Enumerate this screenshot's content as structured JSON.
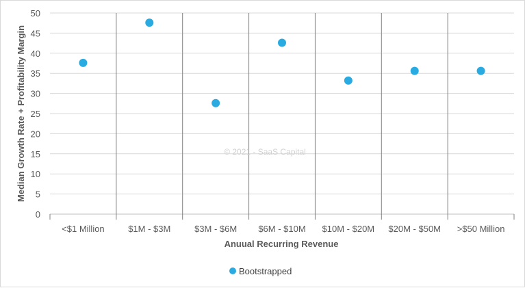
{
  "chart_data": {
    "type": "scatter",
    "categories": [
      "<$1 Million",
      "$1M - $3M",
      "$3M - $6M",
      "$6M - $10M",
      "$10M - $20M",
      "$20M - $50M",
      ">$50 Million"
    ],
    "series": [
      {
        "name": "Bootstrapped",
        "values": [
          37.6,
          47.6,
          27.6,
          42.6,
          33.2,
          35.6,
          35.6
        ]
      }
    ],
    "xlabel": "Anuual Recurring Revenue",
    "ylabel": "Median Growth Rate + Profitability Margin",
    "ylim": [
      0,
      50
    ],
    "yticks": [
      "0",
      "5",
      "10",
      "15",
      "20",
      "25",
      "30",
      "35",
      "40",
      "45",
      "50"
    ],
    "grid": true,
    "legend_position": "bottom",
    "watermark": "© 2021 - SaaS Capital",
    "colors": {
      "series": "#29abe2",
      "grid": "#d9d9d9",
      "separator": "#808080"
    }
  }
}
